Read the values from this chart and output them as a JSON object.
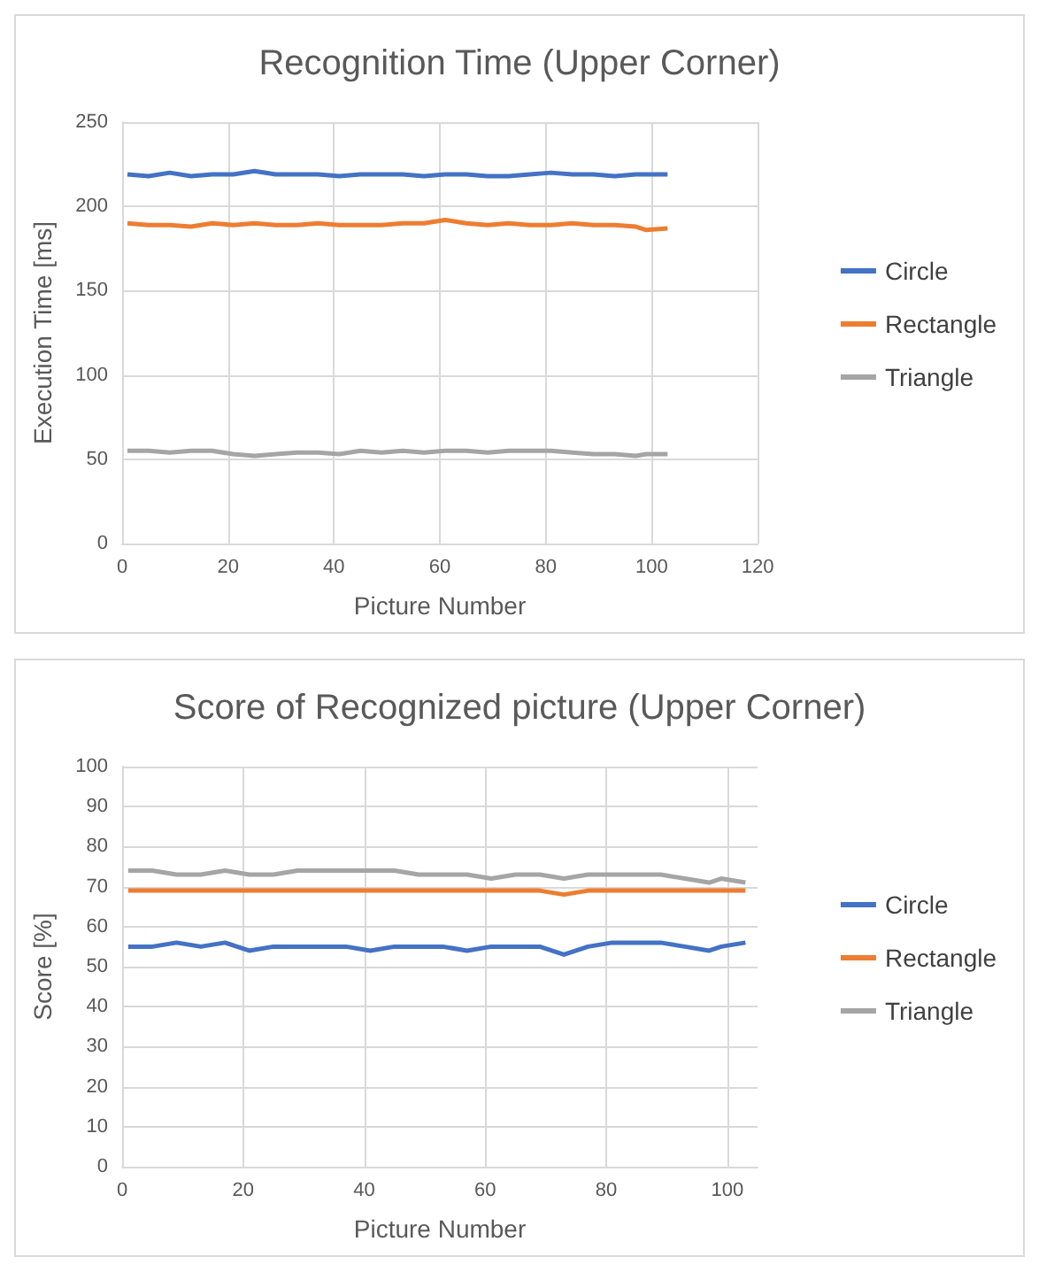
{
  "chart_data": [
    {
      "type": "line",
      "title": "Recognition Time (Upper Corner)",
      "xlabel": "Picture Number",
      "ylabel": "Execution Time [ms]",
      "x": [
        1,
        5,
        9,
        13,
        17,
        21,
        25,
        29,
        33,
        37,
        41,
        45,
        49,
        53,
        57,
        61,
        65,
        69,
        73,
        77,
        81,
        85,
        89,
        93,
        97,
        99,
        103
      ],
      "xlim": [
        0,
        120
      ],
      "xticks": [
        0,
        20,
        40,
        60,
        80,
        100,
        120
      ],
      "ylim": [
        0,
        250
      ],
      "yticks": [
        0,
        50,
        100,
        150,
        200,
        250
      ],
      "grid": true,
      "legend": "right",
      "marker": "none",
      "series": [
        {
          "name": "Circle",
          "color": "#4472c4",
          "values": [
            219,
            218,
            220,
            218,
            219,
            219,
            221,
            219,
            219,
            219,
            218,
            219,
            219,
            219,
            218,
            219,
            219,
            218,
            218,
            219,
            220,
            219,
            219,
            218,
            219,
            219,
            219
          ]
        },
        {
          "name": "Rectangle",
          "color": "#ed7d31",
          "values": [
            190,
            189,
            189,
            188,
            190,
            189,
            190,
            189,
            189,
            190,
            189,
            189,
            189,
            190,
            190,
            192,
            190,
            189,
            190,
            189,
            189,
            190,
            189,
            189,
            188,
            186,
            187
          ]
        },
        {
          "name": "Triangle",
          "color": "#a5a5a5",
          "values": [
            55,
            55,
            54,
            55,
            55,
            53,
            52,
            53,
            54,
            54,
            53,
            55,
            54,
            55,
            54,
            55,
            55,
            54,
            55,
            55,
            55,
            54,
            53,
            53,
            52,
            53,
            53
          ]
        }
      ]
    },
    {
      "type": "line",
      "title": "Score of Recognized picture (Upper Corner)",
      "xlabel": "Picture Number",
      "ylabel": "Score [%]",
      "x": [
        1,
        5,
        9,
        13,
        17,
        21,
        25,
        29,
        33,
        37,
        41,
        45,
        49,
        53,
        57,
        61,
        65,
        69,
        73,
        77,
        81,
        85,
        89,
        93,
        97,
        99,
        103
      ],
      "xlim": [
        0,
        105
      ],
      "xticks": [
        0,
        20,
        40,
        60,
        80,
        100
      ],
      "ylim": [
        0,
        100
      ],
      "yticks": [
        0,
        10,
        20,
        30,
        40,
        50,
        60,
        70,
        80,
        90,
        100
      ],
      "grid": true,
      "legend": "right",
      "marker": "none",
      "series": [
        {
          "name": "Circle",
          "color": "#4472c4",
          "values": [
            55,
            55,
            56,
            55,
            56,
            54,
            55,
            55,
            55,
            55,
            54,
            55,
            55,
            55,
            54,
            55,
            55,
            55,
            53,
            55,
            56,
            56,
            56,
            55,
            54,
            55,
            56
          ]
        },
        {
          "name": "Rectangle",
          "color": "#ed7d31",
          "values": [
            69,
            69,
            69,
            69,
            69,
            69,
            69,
            69,
            69,
            69,
            69,
            69,
            69,
            69,
            69,
            69,
            69,
            69,
            68,
            69,
            69,
            69,
            69,
            69,
            69,
            69,
            69
          ]
        },
        {
          "name": "Triangle",
          "color": "#a5a5a5",
          "values": [
            74,
            74,
            73,
            73,
            74,
            73,
            73,
            74,
            74,
            74,
            74,
            74,
            73,
            73,
            73,
            72,
            73,
            73,
            72,
            73,
            73,
            73,
            73,
            72,
            71,
            72,
            71
          ]
        }
      ]
    }
  ]
}
